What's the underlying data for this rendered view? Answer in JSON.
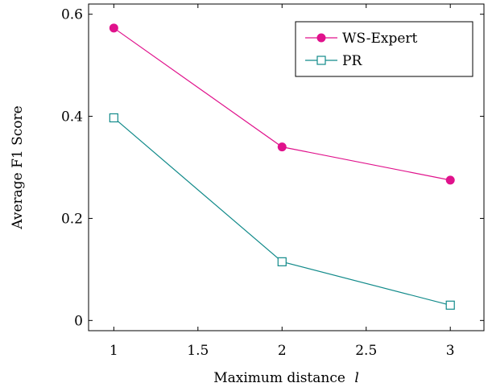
{
  "chart_data": {
    "type": "line",
    "title": "",
    "xlabel": "Maximum distance",
    "xlabel_var": "l",
    "ylabel": "Average F1 Score",
    "xlim": [
      0.85,
      3.2
    ],
    "ylim": [
      -0.02,
      0.62
    ],
    "xticks": [
      1,
      1.5,
      2,
      2.5,
      3
    ],
    "xtick_labels": [
      "1",
      "1.5",
      "2",
      "2.5",
      "3"
    ],
    "yticks": [
      0,
      0.2,
      0.4,
      0.6
    ],
    "ytick_labels": [
      "0",
      "0.2",
      "0.4",
      "0.6"
    ],
    "grid": false,
    "legend_position": "top-right",
    "x": [
      1,
      2,
      3
    ],
    "series": [
      {
        "name": "WS-Expert",
        "values": [
          0.573,
          0.34,
          0.275
        ],
        "color": "#e0128c",
        "marker": "filled-circle"
      },
      {
        "name": "PR",
        "values": [
          0.397,
          0.115,
          0.03
        ],
        "color": "#118a8a",
        "marker": "open-square"
      }
    ]
  }
}
